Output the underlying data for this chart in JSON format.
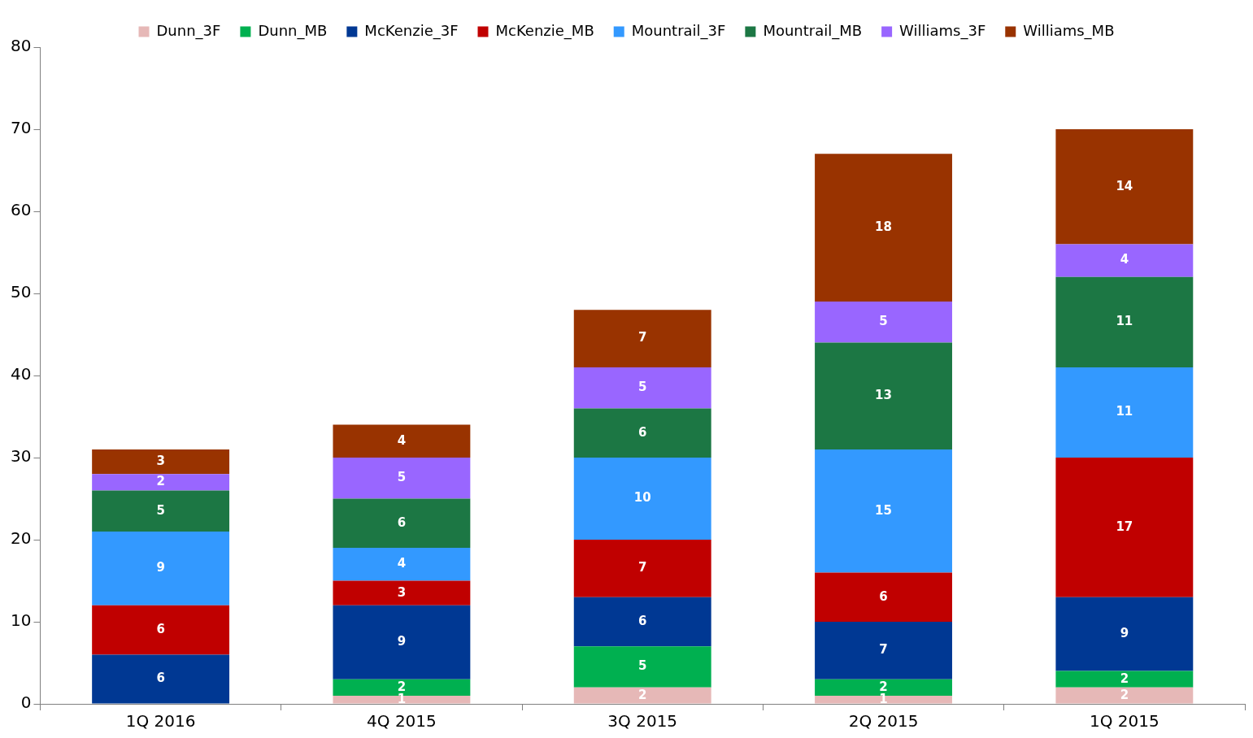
{
  "chart_data": {
    "type": "bar",
    "stacked": true,
    "categories": [
      "1Q 2016",
      "4Q 2015",
      "3Q 2015",
      "2Q 2015",
      "1Q 2015"
    ],
    "series": [
      {
        "name": "Dunn_3F",
        "color": "#e6b8b7",
        "values": [
          null,
          1,
          2,
          1,
          2
        ]
      },
      {
        "name": "Dunn_MB",
        "color": "#00b050",
        "values": [
          null,
          2,
          5,
          2,
          2
        ]
      },
      {
        "name": "McKenzie_3F",
        "color": "#003893",
        "values": [
          6,
          9,
          6,
          7,
          9
        ]
      },
      {
        "name": "McKenzie_MB",
        "color": "#c00000",
        "values": [
          6,
          3,
          7,
          6,
          17
        ]
      },
      {
        "name": "Mountrail_3F",
        "color": "#3399ff",
        "values": [
          9,
          4,
          10,
          15,
          11
        ]
      },
      {
        "name": "Mountrail_MB",
        "color": "#1c7744",
        "values": [
          5,
          6,
          6,
          13,
          11
        ]
      },
      {
        "name": "Williams_3F",
        "color": "#9966ff",
        "values": [
          2,
          5,
          5,
          5,
          4
        ]
      },
      {
        "name": "Williams_MB",
        "color": "#993300",
        "values": [
          3,
          4,
          7,
          18,
          14
        ]
      }
    ],
    "ylim": [
      0,
      80
    ],
    "yticks": [
      0,
      10,
      20,
      30,
      40,
      50,
      60,
      70,
      80
    ],
    "grid": false,
    "legend": "top",
    "data_labels": true
  }
}
